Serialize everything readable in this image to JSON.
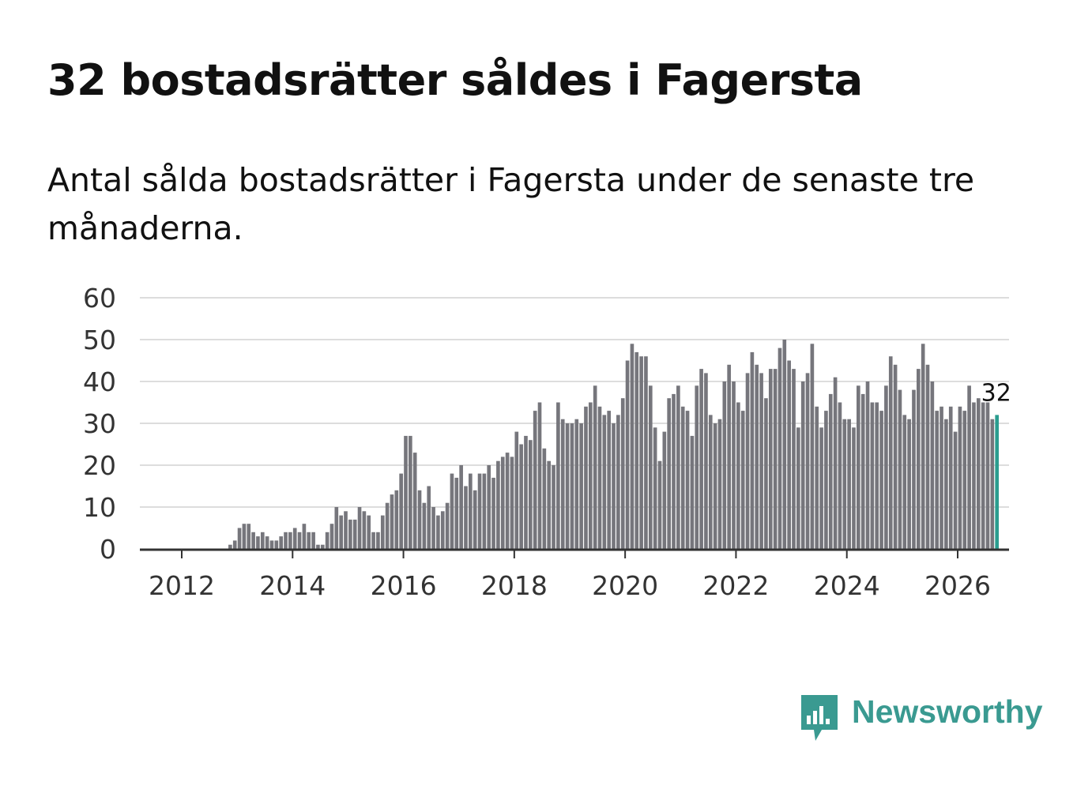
{
  "chart_data": {
    "type": "bar",
    "title": "32 bostadsrätter såldes i Fagersta",
    "subtitle": "Antal sålda bostadsrätter i Fagersta under de senaste tre månaderna.",
    "xlabel": "",
    "ylabel": "",
    "ylim": [
      0,
      60
    ],
    "yticks": [
      "0",
      "10",
      "20",
      "30",
      "40",
      "50",
      "60"
    ],
    "xticks": [
      "2012",
      "2014",
      "2016",
      "2018",
      "2020",
      "2022",
      "2024",
      "2026"
    ],
    "x_start": "2011-10",
    "x_end": "2026-03",
    "grid": true,
    "highlight_label": "32",
    "series": [
      {
        "name": "Antal sålda bostadsrätter",
        "values": [
          0,
          0,
          0,
          0,
          0,
          0,
          0,
          0,
          0,
          0,
          0,
          0,
          0,
          1,
          2,
          5,
          6,
          6,
          4,
          3,
          4,
          3,
          2,
          2,
          3,
          4,
          4,
          5,
          4,
          6,
          4,
          4,
          1,
          1,
          4,
          6,
          10,
          8,
          9,
          7,
          7,
          10,
          9,
          8,
          4,
          4,
          8,
          11,
          13,
          14,
          18,
          27,
          27,
          23,
          14,
          11,
          15,
          10,
          8,
          9,
          11,
          18,
          17,
          20,
          15,
          18,
          14,
          18,
          18,
          20,
          17,
          21,
          22,
          23,
          22,
          28,
          25,
          27,
          26,
          33,
          35,
          24,
          21,
          20,
          35,
          31,
          30,
          30,
          31,
          30,
          34,
          35,
          39,
          34,
          32,
          33,
          30,
          32,
          36,
          45,
          49,
          47,
          46,
          46,
          39,
          29,
          21,
          28,
          36,
          37,
          39,
          34,
          33,
          27,
          39,
          43,
          42,
          32,
          30,
          31,
          40,
          44,
          40,
          35,
          33,
          42,
          47,
          44,
          42,
          36,
          43,
          43,
          48,
          50,
          45,
          43,
          29,
          40,
          42,
          49,
          34,
          29,
          33,
          37,
          41,
          35,
          31,
          31,
          29,
          39,
          37,
          40,
          35,
          35,
          33,
          39,
          46,
          44,
          38,
          32,
          31,
          38,
          43,
          49,
          44,
          40,
          33,
          34,
          31,
          34,
          28,
          34,
          33,
          39,
          35,
          36,
          35,
          35,
          31,
          32
        ]
      }
    ]
  },
  "colors": {
    "bar": "#76767c",
    "highlight": "#2a9d8f",
    "grid": "#dddddd",
    "axis": "#333333",
    "brand": "#3a9a91"
  },
  "brand": {
    "name": "Newsworthy",
    "icon": "newsworthy-logo-icon"
  }
}
